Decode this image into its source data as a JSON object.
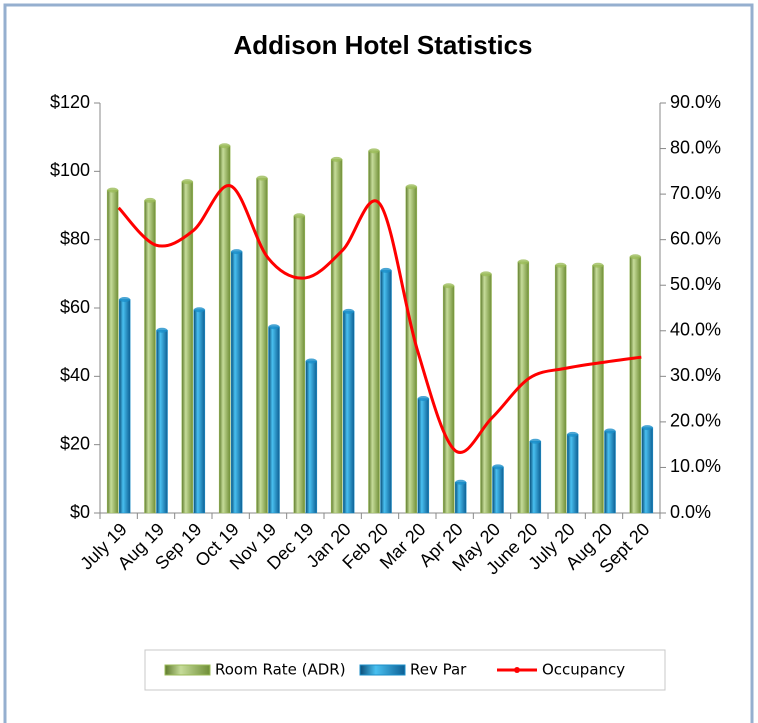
{
  "chart_data": {
    "type": "bar-line",
    "title": "Addison Hotel Statistics",
    "categories": [
      "July 19",
      "Aug 19",
      "Sep 19",
      "Oct 19",
      "Nov 19",
      "Dec 19",
      "Jan 20",
      "Feb 20",
      "Mar 20",
      "Apr 20",
      "May 20",
      "June 20",
      "July 20",
      "Aug 20",
      "Sept 20"
    ],
    "series": [
      {
        "name": "Room Rate (ADR)",
        "type": "bar",
        "color": "#9bbb59",
        "values": [
          94.5,
          91.5,
          97,
          107.5,
          98,
          87,
          103.5,
          106,
          95.5,
          66.5,
          70,
          73.5,
          72.5,
          72.5,
          75
        ]
      },
      {
        "name": "Rev Par",
        "type": "bar",
        "color": "#1b8fc9",
        "values": [
          62.5,
          53.5,
          59.5,
          76.5,
          54.5,
          44.5,
          59,
          71,
          33.5,
          9,
          13.5,
          21,
          23,
          24,
          25
        ]
      },
      {
        "name": "Occupancy",
        "type": "line",
        "axis": "y2",
        "color": "#ff0000",
        "values": [
          67.0,
          58.8,
          62.0,
          71.8,
          56.0,
          51.6,
          57.7,
          67.8,
          35.8,
          13.8,
          20.9,
          29.6,
          31.8,
          33.1,
          34.2
        ]
      }
    ],
    "ylim": [
      0,
      120
    ],
    "yticks": [
      {
        "value": 0,
        "label": "$0"
      },
      {
        "value": 20,
        "label": "$20"
      },
      {
        "value": 40,
        "label": "$40"
      },
      {
        "value": 60,
        "label": "$60"
      },
      {
        "value": 80,
        "label": "$80"
      },
      {
        "value": 100,
        "label": "$100"
      },
      {
        "value": 120,
        "label": "$120"
      }
    ],
    "y2lim": [
      0,
      90
    ],
    "y2ticks": [
      {
        "value": 0,
        "label": "0.0%"
      },
      {
        "value": 10,
        "label": "10.0%"
      },
      {
        "value": 20,
        "label": "20.0%"
      },
      {
        "value": 30,
        "label": "30.0%"
      },
      {
        "value": 40,
        "label": "40.0%"
      },
      {
        "value": 50,
        "label": "50.0%"
      },
      {
        "value": 60,
        "label": "60.0%"
      },
      {
        "value": 70,
        "label": "70.0%"
      },
      {
        "value": 80,
        "label": "80.0%"
      },
      {
        "value": 90,
        "label": "90.0%"
      }
    ],
    "legend": "bottom"
  }
}
